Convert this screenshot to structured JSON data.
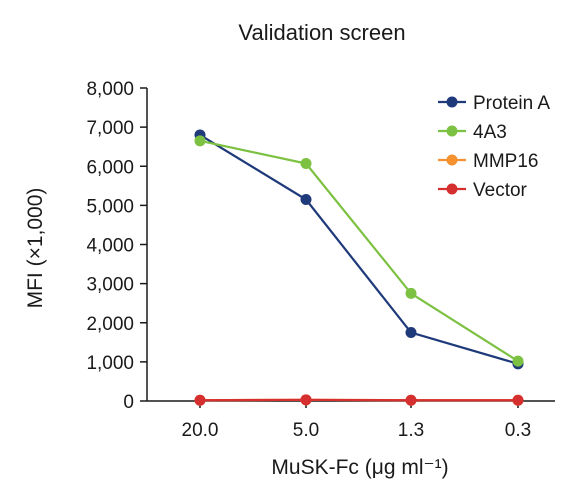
{
  "chart_data": {
    "type": "line",
    "title": "Validation screen",
    "xlabel": "MuSK-Fc (μg ml⁻¹)",
    "ylabel": "MFI (×1,000)",
    "categories": [
      "20.0",
      "5.0",
      "1.3",
      "0.3"
    ],
    "ylim": [
      0,
      8000
    ],
    "yticks": [
      0,
      1000,
      2000,
      3000,
      4000,
      5000,
      6000,
      7000,
      8000
    ],
    "ytick_labels": [
      "0",
      "1,000",
      "2,000",
      "3,000",
      "4,000",
      "5,000",
      "6,000",
      "7,000",
      "8,000"
    ],
    "grid": false,
    "legend_position": "top-right",
    "series": [
      {
        "name": "Protein A",
        "color": "#1f3a7a",
        "values": [
          6800,
          5150,
          1750,
          950
        ]
      },
      {
        "name": "4A3",
        "color": "#7cc142",
        "values": [
          6650,
          6070,
          2750,
          1020
        ]
      },
      {
        "name": "MMP16",
        "color": "#f5922f",
        "values": [
          20,
          30,
          20,
          20
        ]
      },
      {
        "name": "Vector",
        "color": "#d62f2f",
        "values": [
          20,
          30,
          20,
          20
        ]
      }
    ]
  }
}
